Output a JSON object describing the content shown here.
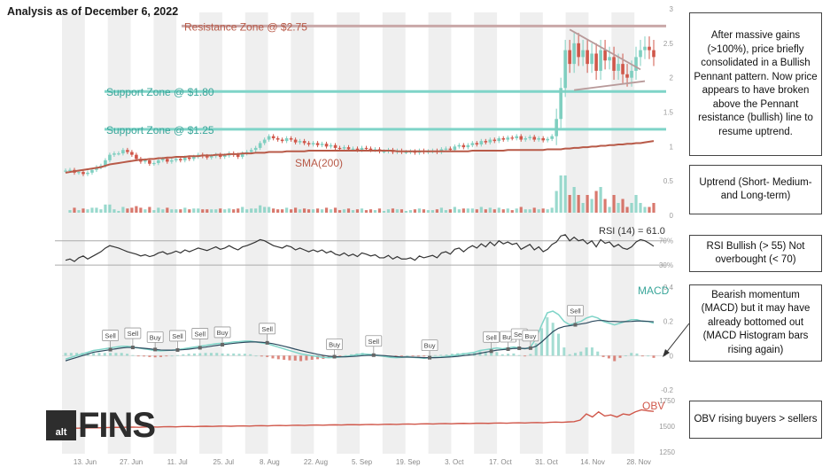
{
  "title": "Analysis as of December 6, 2022",
  "brand": {
    "prefix": "alt",
    "name": "FINS"
  },
  "chart_data": {
    "type": "candlestick",
    "x_ticks": [
      "13. Jun",
      "27. Jun",
      "11. Jul",
      "25. Jul",
      "8. Aug",
      "22. Aug",
      "5. Sep",
      "19. Sep",
      "3. Oct",
      "17. Oct",
      "31. Oct",
      "14. Nov",
      "28. Nov"
    ],
    "price": {
      "ylim": [
        0,
        3
      ],
      "yticks": [
        "0",
        "0.5",
        "1",
        "1.5",
        "2",
        "2.5",
        "3"
      ],
      "close": [
        0.65,
        0.66,
        0.62,
        0.63,
        0.6,
        0.62,
        0.66,
        0.7,
        0.72,
        0.8,
        0.88,
        0.9,
        0.9,
        0.95,
        0.92,
        0.88,
        0.82,
        0.78,
        0.8,
        0.75,
        0.76,
        0.8,
        0.82,
        0.78,
        0.8,
        0.82,
        0.8,
        0.84,
        0.82,
        0.85,
        0.88,
        0.86,
        0.84,
        0.86,
        0.88,
        0.85,
        0.87,
        0.9,
        0.88,
        0.85,
        0.9,
        0.92,
        0.95,
        0.98,
        1.05,
        1.1,
        1.15,
        1.12,
        1.1,
        1.08,
        1.12,
        1.1,
        1.06,
        1.08,
        1.05,
        1.03,
        1.05,
        1.02,
        1.04,
        1.0,
        1.02,
        0.98,
        0.97,
        0.99,
        0.96,
        0.97,
        0.95,
        0.98,
        0.97,
        0.95,
        0.96,
        0.93,
        0.93,
        0.95,
        0.92,
        0.94,
        0.92,
        0.92,
        0.93,
        0.91,
        0.94,
        0.92,
        0.93,
        0.94,
        0.92,
        0.96,
        0.97,
        0.95,
        1.0,
        1.02,
        0.99,
        1.02,
        1.05,
        1.03,
        1.08,
        1.06,
        1.1,
        1.08,
        1.12,
        1.1,
        1.13,
        1.12,
        1.15,
        1.1,
        1.12,
        1.14,
        1.1,
        1.12,
        1.09,
        1.11,
        1.15,
        1.4,
        1.85,
        2.4,
        2.2,
        2.5,
        2.3,
        2.4,
        2.2,
        2.35,
        2.1,
        2.4,
        2.25,
        2.3,
        2.1,
        2.2,
        2.05,
        2.0,
        2.1,
        2.3,
        2.4,
        2.45,
        2.4,
        2.3
      ],
      "sma200": [
        0.62,
        0.63,
        0.64,
        0.65,
        0.66,
        0.67,
        0.68,
        0.69,
        0.7,
        0.72,
        0.74,
        0.75,
        0.76,
        0.77,
        0.78,
        0.79,
        0.8,
        0.81,
        0.81,
        0.82,
        0.82,
        0.83,
        0.83,
        0.84,
        0.84,
        0.85,
        0.85,
        0.85,
        0.86,
        0.86,
        0.86,
        0.87,
        0.87,
        0.87,
        0.88,
        0.88,
        0.88,
        0.89,
        0.89,
        0.89,
        0.9,
        0.9,
        0.9,
        0.91,
        0.91,
        0.91,
        0.92,
        0.92,
        0.92,
        0.92,
        0.93,
        0.93,
        0.93,
        0.93,
        0.93,
        0.94,
        0.94,
        0.94,
        0.94,
        0.94,
        0.94,
        0.94,
        0.94,
        0.94,
        0.94,
        0.94,
        0.94,
        0.94,
        0.94,
        0.94,
        0.94,
        0.94,
        0.94,
        0.94,
        0.94,
        0.93,
        0.93,
        0.93,
        0.93,
        0.93,
        0.93,
        0.93,
        0.93,
        0.93,
        0.93,
        0.93,
        0.93,
        0.93,
        0.93,
        0.93,
        0.93,
        0.93,
        0.94,
        0.94,
        0.94,
        0.94,
        0.94,
        0.94,
        0.94,
        0.94,
        0.95,
        0.95,
        0.95,
        0.95,
        0.95,
        0.95,
        0.95,
        0.95,
        0.95,
        0.96,
        0.96,
        0.96,
        0.96,
        0.97,
        0.97,
        0.98,
        0.98,
        0.99,
        0.99,
        1.0,
        1.0,
        1.01,
        1.01,
        1.02,
        1.02,
        1.03,
        1.03,
        1.04,
        1.04,
        1.05,
        1.05,
        1.06,
        1.07,
        1.08
      ],
      "resistance": {
        "label": "Resistance Zone @ $2.75",
        "value": 2.75
      },
      "support_high": {
        "label": "Support Zone @ $1.80",
        "value": 1.8
      },
      "support_low": {
        "label": "Support Zone @ $1.25",
        "value": 1.25
      },
      "sma_label": "SMA(200)"
    },
    "rsi": {
      "label": "RSI (14) = 61.0",
      "ylim": [
        20,
        90
      ],
      "levels": [
        70,
        30
      ],
      "level_labels": [
        "70%",
        "30%"
      ],
      "values": [
        38,
        40,
        36,
        42,
        45,
        40,
        44,
        48,
        52,
        58,
        62,
        60,
        58,
        55,
        52,
        50,
        48,
        45,
        47,
        44,
        46,
        50,
        52,
        48,
        50,
        53,
        50,
        55,
        52,
        55,
        58,
        56,
        54,
        57,
        60,
        56,
        58,
        62,
        58,
        55,
        60,
        62,
        65,
        68,
        72,
        70,
        66,
        62,
        60,
        58,
        62,
        60,
        55,
        58,
        55,
        52,
        55,
        52,
        55,
        50,
        53,
        48,
        46,
        50,
        45,
        48,
        44,
        50,
        48,
        45,
        47,
        42,
        42,
        46,
        40,
        44,
        40,
        40,
        42,
        38,
        45,
        42,
        44,
        46,
        42,
        50,
        52,
        48,
        56,
        58,
        52,
        58,
        62,
        58,
        65,
        60,
        68,
        62,
        70,
        65,
        68,
        64,
        66,
        56,
        60,
        64,
        55,
        60,
        52,
        56,
        64,
        68,
        78,
        80,
        70,
        76,
        70,
        72,
        65,
        70,
        60,
        72,
        66,
        68,
        60,
        64,
        58,
        56,
        60,
        68,
        72,
        70,
        66,
        61
      ]
    },
    "macd": {
      "label": "MACD",
      "ylim": [
        -0.2,
        0.4
      ],
      "yticks": [
        "0.4",
        "0.2",
        "0",
        "-0.2"
      ],
      "macd": [
        -0.02,
        -0.01,
        0.0,
        0.01,
        0.02,
        0.03,
        0.035,
        0.04,
        0.045,
        0.05,
        0.055,
        0.055,
        0.05,
        0.045,
        0.04,
        0.035,
        0.03,
        0.028,
        0.03,
        0.032,
        0.035,
        0.04,
        0.045,
        0.05,
        0.055,
        0.06,
        0.065,
        0.07,
        0.072,
        0.075,
        0.08,
        0.082,
        0.085,
        0.085,
        0.08,
        0.075,
        0.07,
        0.06,
        0.05,
        0.04,
        0.03,
        0.02,
        0.01,
        0.005,
        0.0,
        -0.005,
        -0.01,
        -0.012,
        -0.01,
        -0.008,
        -0.005,
        0.0,
        0.005,
        0.01,
        0.008,
        0.005,
        0.0,
        -0.005,
        -0.01,
        -0.012,
        -0.01,
        -0.008,
        -0.01,
        -0.012,
        -0.015,
        -0.012,
        -0.01,
        -0.008,
        -0.005,
        0.0,
        0.005,
        0.01,
        0.015,
        0.02,
        0.03,
        0.035,
        0.04,
        0.045,
        0.04,
        0.045,
        0.05,
        0.045,
        0.04,
        0.05,
        0.1,
        0.18,
        0.25,
        0.26,
        0.24,
        0.2,
        0.18,
        0.19,
        0.2,
        0.22,
        0.23,
        0.22,
        0.2,
        0.19,
        0.18,
        0.19,
        0.2,
        0.21,
        0.21,
        0.2,
        0.2,
        0.19
      ],
      "signal": [
        -0.03,
        -0.02,
        -0.01,
        0.0,
        0.01,
        0.02,
        0.025,
        0.03,
        0.035,
        0.04,
        0.045,
        0.048,
        0.048,
        0.046,
        0.043,
        0.04,
        0.036,
        0.033,
        0.032,
        0.032,
        0.033,
        0.035,
        0.038,
        0.042,
        0.046,
        0.05,
        0.055,
        0.06,
        0.064,
        0.068,
        0.072,
        0.075,
        0.078,
        0.08,
        0.08,
        0.078,
        0.075,
        0.07,
        0.063,
        0.055,
        0.047,
        0.038,
        0.03,
        0.022,
        0.015,
        0.008,
        0.002,
        -0.003,
        -0.006,
        -0.007,
        -0.007,
        -0.005,
        -0.003,
        0.0,
        0.002,
        0.003,
        0.002,
        0.0,
        -0.003,
        -0.006,
        -0.008,
        -0.008,
        -0.009,
        -0.01,
        -0.012,
        -0.012,
        -0.012,
        -0.011,
        -0.009,
        -0.007,
        -0.004,
        0.0,
        0.004,
        0.008,
        0.014,
        0.02,
        0.026,
        0.032,
        0.035,
        0.038,
        0.042,
        0.043,
        0.042,
        0.044,
        0.055,
        0.08,
        0.11,
        0.14,
        0.16,
        0.17,
        0.175,
        0.18,
        0.185,
        0.19,
        0.2,
        0.205,
        0.205,
        0.2,
        0.2,
        0.198,
        0.199,
        0.2,
        0.202,
        0.202,
        0.2,
        0.198
      ],
      "signals": [
        {
          "label": "Sell",
          "i": 8
        },
        {
          "label": "Sell",
          "i": 12
        },
        {
          "label": "Buy",
          "i": 16
        },
        {
          "label": "Sell",
          "i": 20
        },
        {
          "label": "Sell",
          "i": 24
        },
        {
          "label": "Buy",
          "i": 28
        },
        {
          "label": "Sell",
          "i": 36
        },
        {
          "label": "Buy",
          "i": 48
        },
        {
          "label": "Sell",
          "i": 55
        },
        {
          "label": "Buy",
          "i": 65
        },
        {
          "label": "Sell",
          "i": 76
        },
        {
          "label": "Buy",
          "i": 79
        },
        {
          "label": "Sell",
          "i": 81
        },
        {
          "label": "Buy",
          "i": 83
        },
        {
          "label": "Sell",
          "i": 91
        }
      ]
    },
    "obv": {
      "label": "OBV",
      "ylim": [
        1250,
        1750
      ],
      "yticks": [
        "1750",
        "1500",
        "1250"
      ],
      "values": [
        1480,
        1482,
        1481,
        1483,
        1485,
        1484,
        1486,
        1488,
        1490,
        1489,
        1491,
        1492,
        1490,
        1493,
        1494,
        1492,
        1495,
        1496,
        1494,
        1497,
        1498,
        1496,
        1499,
        1500,
        1498,
        1501,
        1502,
        1500,
        1503,
        1504,
        1502,
        1505,
        1506,
        1504,
        1507,
        1508,
        1506,
        1509,
        1510,
        1508,
        1511,
        1512,
        1510,
        1513,
        1514,
        1512,
        1515,
        1516,
        1514,
        1517,
        1518,
        1516,
        1519,
        1520,
        1518,
        1521,
        1522,
        1520,
        1523,
        1524,
        1522,
        1525,
        1526,
        1524,
        1527,
        1528,
        1526,
        1529,
        1530,
        1528,
        1531,
        1532,
        1530,
        1533,
        1534,
        1532,
        1535,
        1536,
        1534,
        1538,
        1540,
        1538,
        1542,
        1545,
        1560,
        1620,
        1590,
        1640,
        1600,
        1610,
        1590,
        1620,
        1610,
        1640,
        1660,
        1650,
        1645
      ]
    }
  },
  "notes": {
    "pennant": "After massive gains (>100%), price briefly consolidated in a Bullish Pennant pattern. Now price appears to have broken above the Pennant resistance (bullish) line to resume uptrend.",
    "uptrend": "Uptrend (Short- Medium- and Long-term)",
    "rsi": "RSI Bullish (> 55) Not overbought (< 70)",
    "macd": "Bearish momentum (MACD) but it may have already bottomed out (MACD Histogram bars rising again)",
    "obv": "OBV rising buyers > sellers"
  },
  "colors": {
    "up": "#7fcfc0",
    "down": "#d0574a",
    "sma": "#b85a48",
    "support": "#7fd4c8",
    "resistance": "#c9a8a8",
    "resistance_text": "#b85a48",
    "support_text": "#3aa69a",
    "macd_line": "#7fd4c8",
    "signal_line": "#2c4a5e",
    "band": "#efefef"
  }
}
